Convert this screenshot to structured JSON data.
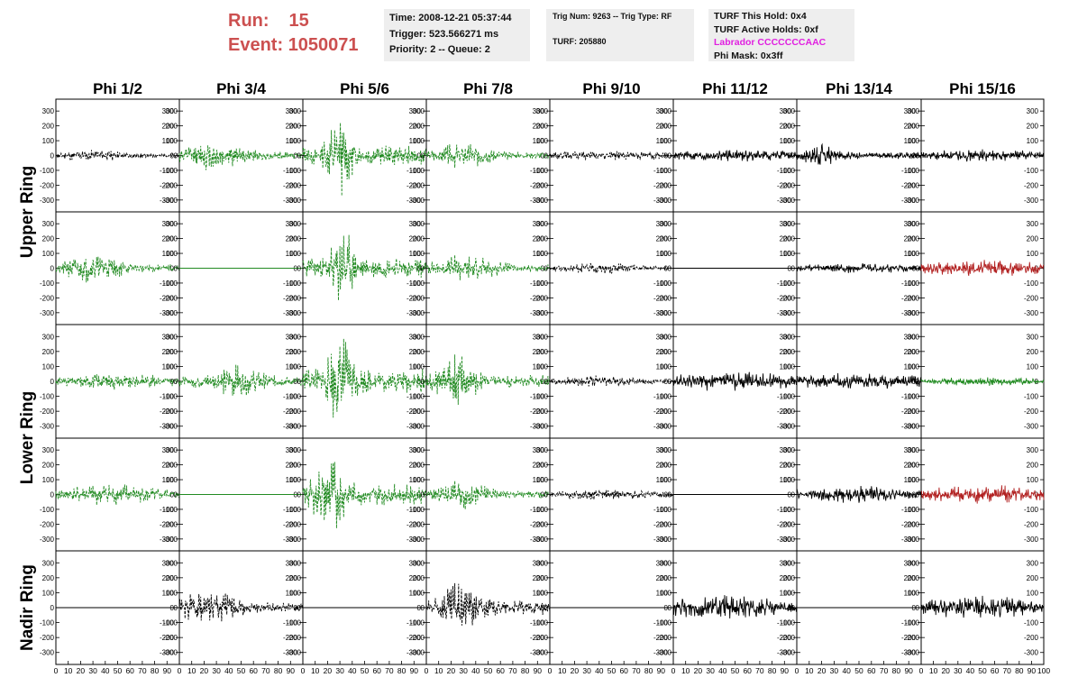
{
  "header": {
    "run_label": "Run:",
    "run_value": "15",
    "event_label": "Event:",
    "event_value": "1050071"
  },
  "info_time": {
    "time": "Time: 2008-12-21 05:37:44",
    "trigger": "Trigger: 523.566271 ms",
    "priority": "Priority: 2 -- Queue: 2"
  },
  "info_trig": {
    "trig": "Trig Num: 9263 -- Trig Type: RF",
    "turf": "TURF: 205880"
  },
  "info_turf": {
    "hold": "TURF This Hold: 0x4",
    "active": "TURF Active Holds: 0xf",
    "labrador": "Labrador CCCCCCCAAC",
    "phimask": "Phi Mask: 0x3ff"
  },
  "colors": {
    "run_text": "#cc5050",
    "info_bg": "#eeeeee",
    "labrador": "#e020e0",
    "trace_black": "#000000",
    "trace_green": "#228b22",
    "trace_red": "#b22222"
  },
  "columns": [
    "Phi 1/2",
    "Phi 3/4",
    "Phi 5/6",
    "Phi 7/8",
    "Phi 9/10",
    "Phi 11/12",
    "Phi 13/14",
    "Phi 15/16"
  ],
  "ring_labels": [
    "Upper Ring",
    "Lower Ring",
    "Nadir Ring"
  ],
  "y_ticks": [
    "300",
    "200",
    "100",
    "0",
    "-100",
    "-200",
    "-300"
  ],
  "x_ticks": [
    "0",
    "10",
    "20",
    "30",
    "40",
    "50",
    "60",
    "70",
    "80",
    "90",
    "100"
  ],
  "chart_data": {
    "type": "line",
    "title": "",
    "xlabel": "",
    "ylabel": "",
    "xlim": [
      0,
      100
    ],
    "ylim": [
      -380,
      380
    ],
    "grid": false,
    "description_rows": [
      "Upper Ring row 1",
      "Upper Ring row 2",
      "Lower Ring row 1",
      "Lower Ring row 2",
      "Nadir Ring"
    ],
    "panels": [
      [
        {
          "color": "black",
          "style": "dash",
          "amp": 40,
          "center": 30,
          "width": 40,
          "seed": 11
        },
        {
          "color": "green",
          "style": "dash",
          "amp": 110,
          "center": 27,
          "width": 25,
          "seed": 12
        },
        {
          "color": "green",
          "style": "dash",
          "amp": 290,
          "center": 30,
          "width": 10,
          "seed": 13
        },
        {
          "color": "green",
          "style": "dash",
          "amp": 90,
          "center": 30,
          "width": 25,
          "seed": 14
        },
        {
          "color": "black",
          "style": "dash",
          "amp": 35,
          "center": 50,
          "width": 60,
          "seed": 15
        },
        {
          "color": "black",
          "style": "solid",
          "amp": 45,
          "center": 50,
          "width": 60,
          "seed": 16
        },
        {
          "color": "black",
          "style": "solid",
          "amp": 110,
          "center": 18,
          "width": 10,
          "seed": 17
        },
        {
          "color": "black",
          "style": "solid",
          "amp": 45,
          "center": 50,
          "width": 60,
          "seed": 18
        }
      ],
      [
        {
          "color": "green",
          "style": "dash",
          "amp": 110,
          "center": 30,
          "width": 22,
          "seed": 21
        },
        {
          "color": "green",
          "style": "flat",
          "amp": 0,
          "center": 50,
          "width": 50,
          "seed": 22
        },
        {
          "color": "green",
          "style": "dash",
          "amp": 300,
          "center": 32,
          "width": 10,
          "seed": 23
        },
        {
          "color": "green",
          "style": "dash",
          "amp": 100,
          "center": 32,
          "width": 25,
          "seed": 24
        },
        {
          "color": "black",
          "style": "dash",
          "amp": 45,
          "center": 40,
          "width": 30,
          "seed": 25
        },
        {
          "color": "black",
          "style": "flat",
          "amp": 0,
          "center": 50,
          "width": 50,
          "seed": 26
        },
        {
          "color": "black",
          "style": "solid",
          "amp": 35,
          "center": 50,
          "width": 60,
          "seed": 27
        },
        {
          "color": "red",
          "style": "solid",
          "amp": 60,
          "center": 50,
          "width": 60,
          "seed": 28
        }
      ],
      [
        {
          "color": "green",
          "style": "dash",
          "amp": 60,
          "center": 50,
          "width": 45,
          "seed": 31
        },
        {
          "color": "green",
          "style": "dash",
          "amp": 120,
          "center": 45,
          "width": 25,
          "seed": 32
        },
        {
          "color": "green",
          "style": "dash",
          "amp": 340,
          "center": 30,
          "width": 10,
          "seed": 33
        },
        {
          "color": "green",
          "style": "dash",
          "amp": 190,
          "center": 25,
          "width": 15,
          "seed": 34
        },
        {
          "color": "black",
          "style": "dash",
          "amp": 40,
          "center": 40,
          "width": 40,
          "seed": 35
        },
        {
          "color": "black",
          "style": "solid",
          "amp": 70,
          "center": 50,
          "width": 60,
          "seed": 36
        },
        {
          "color": "black",
          "style": "solid",
          "amp": 60,
          "center": 50,
          "width": 60,
          "seed": 37
        },
        {
          "color": "green",
          "style": "solid",
          "amp": 30,
          "center": 50,
          "width": 60,
          "seed": 38
        }
      ],
      [
        {
          "color": "green",
          "style": "dash",
          "amp": 80,
          "center": 45,
          "width": 40,
          "seed": 41
        },
        {
          "color": "green",
          "style": "flat",
          "amp": 0,
          "center": 50,
          "width": 50,
          "seed": 42
        },
        {
          "color": "green",
          "style": "dash",
          "amp": 290,
          "center": 22,
          "width": 12,
          "seed": 43
        },
        {
          "color": "green",
          "style": "dash",
          "amp": 110,
          "center": 30,
          "width": 20,
          "seed": 44
        },
        {
          "color": "black",
          "style": "dash",
          "amp": 40,
          "center": 50,
          "width": 50,
          "seed": 45
        },
        {
          "color": "black",
          "style": "flat",
          "amp": 0,
          "center": 50,
          "width": 50,
          "seed": 46
        },
        {
          "color": "black",
          "style": "solid",
          "amp": 60,
          "center": 50,
          "width": 50,
          "seed": 47
        },
        {
          "color": "red",
          "style": "solid",
          "amp": 70,
          "center": 50,
          "width": 60,
          "seed": 48
        }
      ],
      [
        {
          "color": "black",
          "style": "flat",
          "amp": 0,
          "center": 50,
          "width": 50,
          "seed": 51
        },
        {
          "color": "black",
          "style": "dash",
          "amp": 130,
          "center": 25,
          "width": 25,
          "seed": 52
        },
        {
          "color": "black",
          "style": "flat",
          "amp": 0,
          "center": 50,
          "width": 50,
          "seed": 53
        },
        {
          "color": "black",
          "style": "dash",
          "amp": 200,
          "center": 28,
          "width": 15,
          "seed": 54
        },
        {
          "color": "black",
          "style": "flat",
          "amp": 0,
          "center": 50,
          "width": 50,
          "seed": 55
        },
        {
          "color": "black",
          "style": "solid",
          "amp": 90,
          "center": 40,
          "width": 50,
          "seed": 56
        },
        {
          "color": "black",
          "style": "flat",
          "amp": 0,
          "center": 50,
          "width": 50,
          "seed": 57
        },
        {
          "color": "black",
          "style": "solid",
          "amp": 85,
          "center": 45,
          "width": 50,
          "seed": 58
        }
      ]
    ]
  }
}
